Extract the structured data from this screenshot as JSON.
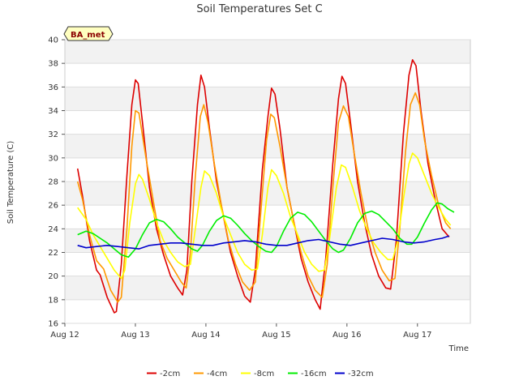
{
  "chart_data": {
    "type": "line",
    "title": "Soil Temperatures Set C",
    "xlabel": "Time",
    "ylabel": "Soil Temperature (C)",
    "badge": "BA_met",
    "xlim": [
      0,
      5.75
    ],
    "ylim": [
      16,
      40
    ],
    "yticks": [
      16,
      18,
      20,
      22,
      24,
      26,
      28,
      30,
      32,
      34,
      36,
      38,
      40
    ],
    "xticks": [
      {
        "x": 0,
        "label": "Aug 12"
      },
      {
        "x": 1,
        "label": "Aug 13"
      },
      {
        "x": 2,
        "label": "Aug 14"
      },
      {
        "x": 3,
        "label": "Aug 15"
      },
      {
        "x": 4,
        "label": "Aug 16"
      },
      {
        "x": 5,
        "label": "Aug 17"
      }
    ],
    "grid": true,
    "legend_position": "bottom",
    "series": [
      {
        "name": "-2cm",
        "color": "#dd0000",
        "points": [
          [
            0.18,
            29.1
          ],
          [
            0.25,
            26.8
          ],
          [
            0.35,
            23.0
          ],
          [
            0.45,
            20.5
          ],
          [
            0.5,
            20.1
          ],
          [
            0.6,
            18.2
          ],
          [
            0.7,
            16.9
          ],
          [
            0.73,
            17.0
          ],
          [
            0.8,
            21.0
          ],
          [
            0.88,
            28.5
          ],
          [
            0.95,
            34.5
          ],
          [
            1.0,
            36.6
          ],
          [
            1.04,
            36.3
          ],
          [
            1.1,
            33.0
          ],
          [
            1.2,
            27.5
          ],
          [
            1.3,
            24.0
          ],
          [
            1.4,
            21.8
          ],
          [
            1.5,
            20.0
          ],
          [
            1.6,
            19.0
          ],
          [
            1.67,
            18.4
          ],
          [
            1.73,
            20.5
          ],
          [
            1.8,
            28.0
          ],
          [
            1.88,
            34.5
          ],
          [
            1.93,
            37.0
          ],
          [
            1.98,
            36.0
          ],
          [
            2.05,
            32.5
          ],
          [
            2.15,
            28.0
          ],
          [
            2.25,
            25.0
          ],
          [
            2.35,
            22.0
          ],
          [
            2.45,
            20.0
          ],
          [
            2.55,
            18.3
          ],
          [
            2.63,
            17.8
          ],
          [
            2.7,
            20.5
          ],
          [
            2.8,
            29.0
          ],
          [
            2.88,
            33.5
          ],
          [
            2.93,
            35.9
          ],
          [
            2.98,
            35.4
          ],
          [
            3.05,
            32.5
          ],
          [
            3.15,
            27.5
          ],
          [
            3.25,
            24.5
          ],
          [
            3.35,
            21.5
          ],
          [
            3.45,
            19.5
          ],
          [
            3.55,
            18.0
          ],
          [
            3.62,
            17.2
          ],
          [
            3.7,
            21.5
          ],
          [
            3.8,
            29.5
          ],
          [
            3.88,
            35.0
          ],
          [
            3.93,
            36.9
          ],
          [
            3.98,
            36.3
          ],
          [
            4.05,
            33.0
          ],
          [
            4.15,
            28.0
          ],
          [
            4.25,
            24.5
          ],
          [
            4.35,
            21.8
          ],
          [
            4.45,
            20.0
          ],
          [
            4.55,
            19.0
          ],
          [
            4.62,
            18.9
          ],
          [
            4.7,
            23.0
          ],
          [
            4.8,
            32.0
          ],
          [
            4.88,
            37.0
          ],
          [
            4.93,
            38.3
          ],
          [
            4.98,
            37.8
          ],
          [
            5.05,
            34.0
          ],
          [
            5.15,
            29.5
          ],
          [
            5.25,
            26.5
          ],
          [
            5.35,
            24.0
          ],
          [
            5.45,
            23.3
          ]
        ]
      },
      {
        "name": "-4cm",
        "color": "#ff9900",
        "points": [
          [
            0.18,
            28.0
          ],
          [
            0.25,
            26.5
          ],
          [
            0.35,
            23.5
          ],
          [
            0.45,
            21.3
          ],
          [
            0.55,
            20.6
          ],
          [
            0.65,
            18.8
          ],
          [
            0.75,
            17.8
          ],
          [
            0.8,
            18.2
          ],
          [
            0.88,
            24.0
          ],
          [
            0.95,
            31.0
          ],
          [
            1.0,
            34.0
          ],
          [
            1.05,
            33.8
          ],
          [
            1.15,
            30.0
          ],
          [
            1.25,
            26.5
          ],
          [
            1.35,
            23.0
          ],
          [
            1.45,
            21.5
          ],
          [
            1.55,
            20.5
          ],
          [
            1.65,
            19.5
          ],
          [
            1.72,
            19.0
          ],
          [
            1.78,
            22.0
          ],
          [
            1.85,
            28.5
          ],
          [
            1.92,
            33.5
          ],
          [
            1.97,
            34.5
          ],
          [
            2.03,
            33.0
          ],
          [
            2.12,
            29.5
          ],
          [
            2.22,
            26.0
          ],
          [
            2.32,
            23.0
          ],
          [
            2.42,
            21.0
          ],
          [
            2.52,
            19.5
          ],
          [
            2.62,
            18.8
          ],
          [
            2.7,
            19.5
          ],
          [
            2.78,
            25.5
          ],
          [
            2.86,
            31.5
          ],
          [
            2.92,
            33.7
          ],
          [
            2.97,
            33.4
          ],
          [
            3.05,
            31.0
          ],
          [
            3.15,
            27.5
          ],
          [
            3.25,
            24.5
          ],
          [
            3.35,
            22.0
          ],
          [
            3.45,
            20.0
          ],
          [
            3.55,
            18.8
          ],
          [
            3.65,
            18.2
          ],
          [
            3.72,
            21.0
          ],
          [
            3.8,
            27.5
          ],
          [
            3.88,
            33.0
          ],
          [
            3.95,
            34.4
          ],
          [
            4.02,
            33.5
          ],
          [
            4.1,
            30.5
          ],
          [
            4.2,
            27.0
          ],
          [
            4.3,
            24.0
          ],
          [
            4.4,
            22.0
          ],
          [
            4.5,
            20.5
          ],
          [
            4.6,
            19.6
          ],
          [
            4.68,
            19.8
          ],
          [
            4.75,
            24.0
          ],
          [
            4.83,
            30.5
          ],
          [
            4.9,
            34.5
          ],
          [
            4.97,
            35.5
          ],
          [
            5.03,
            34.5
          ],
          [
            5.1,
            31.5
          ],
          [
            5.2,
            28.5
          ],
          [
            5.3,
            26.0
          ],
          [
            5.4,
            24.5
          ],
          [
            5.47,
            24.0
          ]
        ]
      },
      {
        "name": "-8cm",
        "color": "#ffff00",
        "points": [
          [
            0.18,
            25.8
          ],
          [
            0.3,
            24.8
          ],
          [
            0.4,
            23.5
          ],
          [
            0.5,
            22.5
          ],
          [
            0.6,
            21.5
          ],
          [
            0.7,
            20.5
          ],
          [
            0.8,
            19.8
          ],
          [
            0.85,
            20.5
          ],
          [
            0.92,
            24.5
          ],
          [
            1.0,
            27.8
          ],
          [
            1.05,
            28.6
          ],
          [
            1.1,
            28.2
          ],
          [
            1.2,
            26.5
          ],
          [
            1.3,
            24.5
          ],
          [
            1.4,
            23.0
          ],
          [
            1.5,
            22.0
          ],
          [
            1.6,
            21.2
          ],
          [
            1.7,
            20.8
          ],
          [
            1.78,
            21.0
          ],
          [
            1.85,
            24.0
          ],
          [
            1.93,
            27.5
          ],
          [
            1.98,
            28.9
          ],
          [
            2.05,
            28.5
          ],
          [
            2.15,
            27.0
          ],
          [
            2.25,
            25.0
          ],
          [
            2.35,
            23.5
          ],
          [
            2.45,
            22.0
          ],
          [
            2.55,
            21.0
          ],
          [
            2.65,
            20.5
          ],
          [
            2.73,
            20.6
          ],
          [
            2.8,
            23.5
          ],
          [
            2.88,
            27.5
          ],
          [
            2.93,
            29.0
          ],
          [
            3.0,
            28.5
          ],
          [
            3.1,
            27.0
          ],
          [
            3.2,
            25.0
          ],
          [
            3.3,
            23.5
          ],
          [
            3.4,
            22.0
          ],
          [
            3.5,
            21.0
          ],
          [
            3.6,
            20.4
          ],
          [
            3.68,
            20.5
          ],
          [
            3.75,
            23.0
          ],
          [
            3.85,
            27.5
          ],
          [
            3.92,
            29.4
          ],
          [
            3.98,
            29.2
          ],
          [
            4.08,
            27.5
          ],
          [
            4.18,
            25.5
          ],
          [
            4.28,
            24.0
          ],
          [
            4.38,
            22.8
          ],
          [
            4.48,
            22.0
          ],
          [
            4.58,
            21.4
          ],
          [
            4.65,
            21.4
          ],
          [
            4.72,
            23.0
          ],
          [
            4.8,
            26.5
          ],
          [
            4.88,
            29.5
          ],
          [
            4.93,
            30.4
          ],
          [
            5.0,
            30.0
          ],
          [
            5.1,
            28.5
          ],
          [
            5.2,
            27.0
          ],
          [
            5.3,
            25.8
          ],
          [
            5.4,
            24.8
          ],
          [
            5.47,
            24.3
          ]
        ]
      },
      {
        "name": "-16cm",
        "color": "#00ee00",
        "points": [
          [
            0.18,
            23.5
          ],
          [
            0.3,
            23.8
          ],
          [
            0.4,
            23.6
          ],
          [
            0.5,
            23.2
          ],
          [
            0.6,
            22.8
          ],
          [
            0.7,
            22.3
          ],
          [
            0.8,
            21.8
          ],
          [
            0.9,
            21.6
          ],
          [
            1.0,
            22.3
          ],
          [
            1.1,
            23.5
          ],
          [
            1.2,
            24.5
          ],
          [
            1.3,
            24.8
          ],
          [
            1.4,
            24.6
          ],
          [
            1.5,
            24.0
          ],
          [
            1.6,
            23.3
          ],
          [
            1.7,
            22.8
          ],
          [
            1.8,
            22.3
          ],
          [
            1.88,
            22.1
          ],
          [
            1.95,
            22.6
          ],
          [
            2.05,
            23.8
          ],
          [
            2.15,
            24.7
          ],
          [
            2.25,
            25.1
          ],
          [
            2.35,
            24.9
          ],
          [
            2.45,
            24.3
          ],
          [
            2.55,
            23.6
          ],
          [
            2.65,
            23.0
          ],
          [
            2.75,
            22.5
          ],
          [
            2.85,
            22.1
          ],
          [
            2.93,
            22.0
          ],
          [
            3.0,
            22.5
          ],
          [
            3.1,
            23.8
          ],
          [
            3.2,
            24.9
          ],
          [
            3.3,
            25.4
          ],
          [
            3.4,
            25.2
          ],
          [
            3.5,
            24.6
          ],
          [
            3.6,
            23.8
          ],
          [
            3.7,
            23.0
          ],
          [
            3.8,
            22.3
          ],
          [
            3.88,
            22.0
          ],
          [
            3.95,
            22.2
          ],
          [
            4.05,
            23.2
          ],
          [
            4.15,
            24.5
          ],
          [
            4.25,
            25.3
          ],
          [
            4.35,
            25.5
          ],
          [
            4.45,
            25.2
          ],
          [
            4.55,
            24.6
          ],
          [
            4.65,
            24.0
          ],
          [
            4.75,
            23.2
          ],
          [
            4.85,
            22.7
          ],
          [
            4.92,
            22.7
          ],
          [
            5.0,
            23.3
          ],
          [
            5.1,
            24.5
          ],
          [
            5.2,
            25.6
          ],
          [
            5.28,
            26.2
          ],
          [
            5.35,
            26.1
          ],
          [
            5.43,
            25.7
          ],
          [
            5.52,
            25.4
          ]
        ]
      },
      {
        "name": "-32cm",
        "color": "#0000cc",
        "points": [
          [
            0.18,
            22.6
          ],
          [
            0.3,
            22.4
          ],
          [
            0.45,
            22.5
          ],
          [
            0.6,
            22.6
          ],
          [
            0.75,
            22.5
          ],
          [
            0.9,
            22.4
          ],
          [
            1.05,
            22.3
          ],
          [
            1.2,
            22.6
          ],
          [
            1.35,
            22.7
          ],
          [
            1.5,
            22.8
          ],
          [
            1.65,
            22.8
          ],
          [
            1.8,
            22.7
          ],
          [
            1.95,
            22.6
          ],
          [
            2.1,
            22.6
          ],
          [
            2.25,
            22.8
          ],
          [
            2.4,
            22.9
          ],
          [
            2.55,
            23.0
          ],
          [
            2.7,
            22.9
          ],
          [
            2.85,
            22.7
          ],
          [
            3.0,
            22.6
          ],
          [
            3.15,
            22.6
          ],
          [
            3.3,
            22.8
          ],
          [
            3.45,
            23.0
          ],
          [
            3.6,
            23.1
          ],
          [
            3.75,
            22.9
          ],
          [
            3.9,
            22.7
          ],
          [
            4.05,
            22.6
          ],
          [
            4.2,
            22.8
          ],
          [
            4.35,
            23.0
          ],
          [
            4.5,
            23.2
          ],
          [
            4.65,
            23.1
          ],
          [
            4.8,
            22.9
          ],
          [
            4.95,
            22.8
          ],
          [
            5.1,
            22.9
          ],
          [
            5.25,
            23.1
          ],
          [
            5.35,
            23.2
          ],
          [
            5.45,
            23.4
          ]
        ]
      }
    ]
  }
}
